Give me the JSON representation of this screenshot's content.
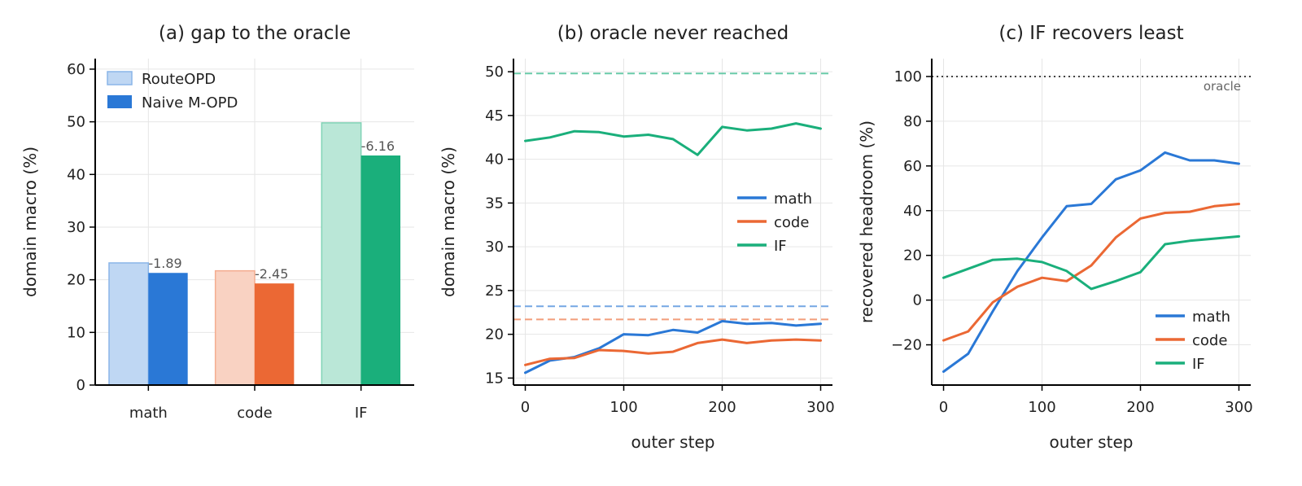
{
  "chart_data": [
    {
      "type": "bar",
      "title": "(a) gap to the oracle",
      "xlabel": "",
      "ylabel": "domain macro (%)",
      "ylim": [
        0,
        62
      ],
      "yticks": [
        0,
        10,
        20,
        30,
        40,
        50,
        60
      ],
      "grid": true,
      "legend_position": "top-left",
      "categories": [
        "math",
        "code",
        "IF"
      ],
      "colors": {
        "math": "#2a78d6",
        "code": "#eb6834",
        "IF": "#1aaf7b"
      },
      "series": [
        {
          "name": "RouteOPD",
          "values": [
            23.2,
            21.7,
            49.8
          ]
        },
        {
          "name": "Naive M-OPD",
          "values": [
            21.3,
            19.3,
            43.6
          ]
        }
      ],
      "gap_labels": [
        "-1.89",
        "-2.45",
        "-6.16"
      ]
    },
    {
      "type": "line",
      "title": "(b) oracle never reached",
      "xlabel": "outer step",
      "ylabel": "domain macro (%)",
      "xlim": [
        -12,
        312
      ],
      "ylim": [
        14.2,
        51.5
      ],
      "xticks": [
        0,
        100,
        200,
        300
      ],
      "yticks": [
        15,
        20,
        25,
        30,
        35,
        40,
        45,
        50
      ],
      "grid": true,
      "legend_position": "center-right",
      "x": [
        0,
        25,
        50,
        75,
        100,
        125,
        150,
        175,
        200,
        225,
        250,
        275,
        300
      ],
      "series": [
        {
          "name": "math",
          "color": "#2a78d6",
          "values": [
            15.6,
            17.0,
            17.4,
            18.4,
            20.0,
            19.9,
            20.5,
            20.2,
            21.5,
            21.2,
            21.3,
            21.0,
            21.2
          ]
        },
        {
          "name": "code",
          "color": "#eb6834",
          "values": [
            16.5,
            17.2,
            17.3,
            18.2,
            18.1,
            17.8,
            18.0,
            19.0,
            19.4,
            19.0,
            19.3,
            19.4,
            19.3
          ]
        },
        {
          "name": "IF",
          "color": "#1aaf7b",
          "values": [
            42.1,
            42.5,
            43.2,
            43.1,
            42.6,
            42.8,
            42.3,
            40.5,
            43.7,
            43.3,
            43.5,
            44.1,
            43.5
          ]
        }
      ],
      "reference_lines": [
        {
          "series": "math",
          "y": 23.2,
          "color": "#2a78d6"
        },
        {
          "series": "code",
          "y": 21.7,
          "color": "#eb6834"
        },
        {
          "series": "IF",
          "y": 49.8,
          "color": "#1aaf7b"
        }
      ]
    },
    {
      "type": "line",
      "title": "(c) IF recovers least",
      "xlabel": "outer step",
      "ylabel": "recovered headroom (%)",
      "xlim": [
        -12,
        312
      ],
      "ylim": [
        -38,
        108
      ],
      "xticks": [
        0,
        100,
        200,
        300
      ],
      "yticks": [
        -20,
        0,
        20,
        40,
        60,
        80,
        100
      ],
      "grid": true,
      "legend_position": "lower-right",
      "x": [
        0,
        25,
        50,
        75,
        100,
        125,
        150,
        175,
        200,
        225,
        250,
        275,
        300
      ],
      "series": [
        {
          "name": "math",
          "color": "#2a78d6",
          "values": [
            -32,
            -24,
            -5,
            13,
            28,
            42,
            43,
            54,
            58,
            66,
            62.5,
            62.5,
            61
          ]
        },
        {
          "name": "code",
          "color": "#eb6834",
          "values": [
            -18,
            -14,
            -1,
            6,
            10,
            8.5,
            15.5,
            28,
            36.5,
            39,
            39.5,
            42,
            43
          ]
        },
        {
          "name": "IF",
          "color": "#1aaf7b",
          "values": [
            10,
            14,
            18,
            18.5,
            17,
            13,
            5,
            8.5,
            12.5,
            25,
            26.5,
            27.5,
            28.5
          ]
        }
      ],
      "reference_line": {
        "y": 100,
        "label": "oracle",
        "color": "#444444"
      }
    }
  ]
}
